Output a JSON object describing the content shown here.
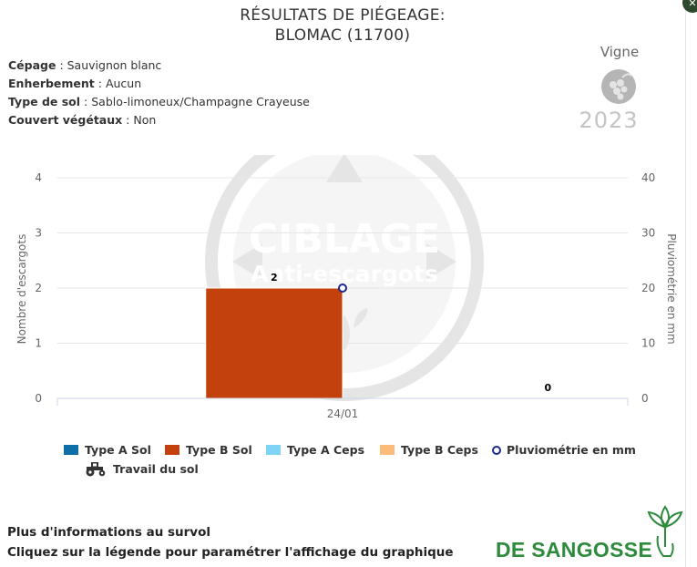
{
  "header": {
    "title_line1": "RÉSULTATS DE PIÉGEAGE:",
    "title_line2": "BLOMAC (11700)"
  },
  "info": {
    "cepage_label": "Cépage",
    "cepage_value": " : Sauvignon blanc",
    "enherbement_label": "Enherbement",
    "enherbement_value": " : Aucun",
    "sol_label": "Type de sol",
    "sol_value": " : Sablo-limoneux/Champagne Crayeuse",
    "couvert_label": "Couvert végétaux",
    "couvert_value": " : Non"
  },
  "crop": {
    "name": "Vigne",
    "year": "2023",
    "icon": "grape-icon"
  },
  "watermark": {
    "line1": "CIBLAGE",
    "line2": "Anti-escargots"
  },
  "chart_data": {
    "type": "bar",
    "categories": [
      "24/01"
    ],
    "y_left": {
      "label": "Nombre d'escargots",
      "range": [
        0,
        4
      ],
      "ticks": [
        "0",
        "1",
        "2",
        "3",
        "4"
      ]
    },
    "y_right": {
      "label": "Pluviométrie en mm",
      "range": [
        0,
        40
      ],
      "ticks": [
        "0",
        "10",
        "20",
        "30",
        "40"
      ]
    },
    "series": [
      {
        "name": "Type A Sol",
        "type": "bar",
        "color": "#0d6ea8",
        "values": [
          null
        ]
      },
      {
        "name": "Type B Sol",
        "type": "bar",
        "color": "#c2410c",
        "values": [
          2
        ]
      },
      {
        "name": "Type A Ceps",
        "type": "bar",
        "color": "#7fd4f5",
        "values": [
          null
        ]
      },
      {
        "name": "Type B Ceps",
        "type": "bar",
        "color": "#fdbb7a",
        "values": [
          0
        ]
      },
      {
        "name": "Pluviométrie en mm",
        "type": "scatter",
        "color": "#1b2a8a",
        "values": [
          20
        ],
        "axis": "right"
      }
    ],
    "data_labels": [
      "2",
      "0"
    ],
    "grid": true,
    "legend_position": "bottom"
  },
  "legend": {
    "items": [
      {
        "label": "Type A Sol",
        "color": "#0d6ea8"
      },
      {
        "label": "Type B Sol",
        "color": "#c2410c"
      },
      {
        "label": "Type A Ceps",
        "color": "#7fd4f5"
      },
      {
        "label": "Type B Ceps",
        "color": "#fdbb7a"
      },
      {
        "label": "Pluviométrie en mm",
        "color": "#1b2a8a"
      },
      {
        "label": "Travail du sol",
        "icon": "tractor-icon"
      }
    ]
  },
  "footer": {
    "line1": "Plus d'informations au survol",
    "line2": "Cliquez sur la légende pour paramétrer l'affichage du graphique"
  },
  "brand": {
    "name": "DE SANGOSSE",
    "color": "#2e8b3e"
  }
}
